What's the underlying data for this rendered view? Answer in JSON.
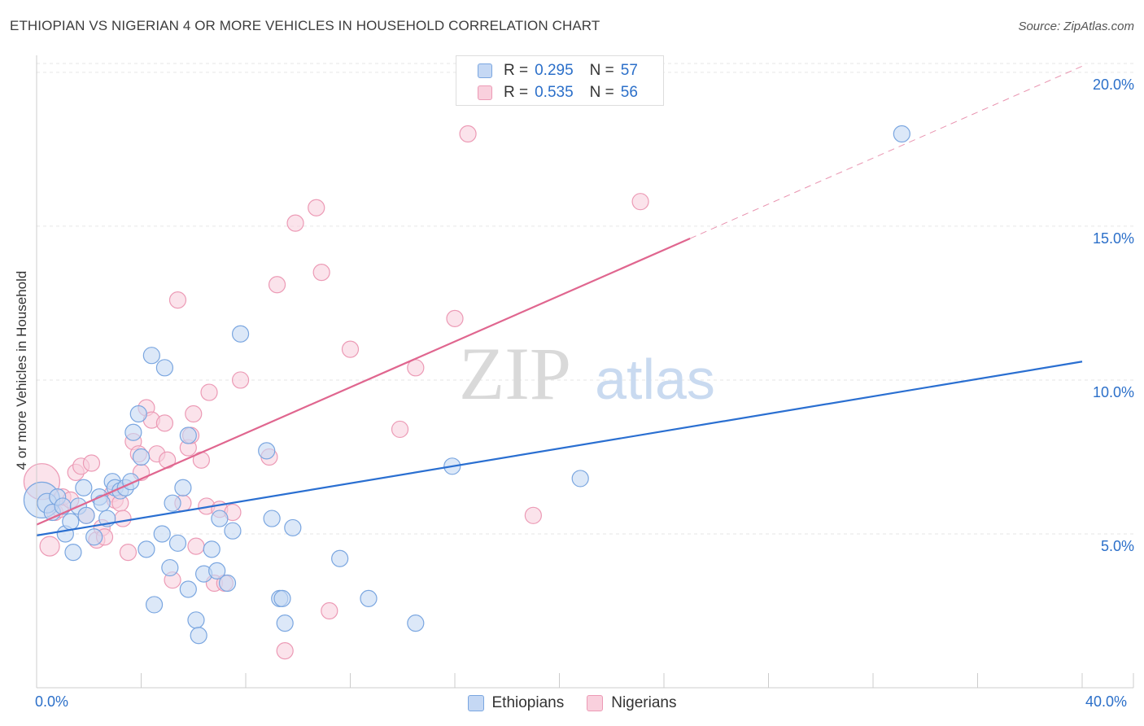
{
  "title": "ETHIOPIAN VS NIGERIAN 4 OR MORE VEHICLES IN HOUSEHOLD CORRELATION CHART",
  "source": "Source: ZipAtlas.com",
  "watermark": {
    "zip": "ZIP",
    "atlas": "atlas"
  },
  "legend_top": [
    {
      "r_label": "R =",
      "r_value": "0.295",
      "n_label": "N =",
      "n_value": "57"
    },
    {
      "r_label": "R =",
      "r_value": "0.535",
      "n_label": "N =",
      "n_value": "56"
    }
  ],
  "legend_bottom": [
    "Ethiopians",
    "Nigerians"
  ],
  "colors": {
    "ethiopian_fill": "#c5d8f4",
    "ethiopian_stroke": "#7aa6e0",
    "ethiopian_line": "#2a6fd1",
    "nigerian_fill": "#f9d0dd",
    "nigerian_stroke": "#ec9ab5",
    "nigerian_line": "#e0668f",
    "axis_text": "#2b6fc9",
    "grid": "#e6e6e6"
  },
  "chart_data": {
    "type": "scatter",
    "title": "ETHIOPIAN VS NIGERIAN 4 OR MORE VEHICLES IN HOUSEHOLD CORRELATION CHART",
    "xlabel": "",
    "ylabel": "4 or more Vehicles in Household",
    "xlim": [
      0,
      40
    ],
    "ylim": [
      0,
      20.5
    ],
    "x_tick_labels": [
      "0.0%",
      "40.0%"
    ],
    "y_ticks": [
      5,
      10,
      15,
      20
    ],
    "y_tick_labels": [
      "5.0%",
      "10.0%",
      "15.0%",
      "20.0%"
    ],
    "grid": true,
    "series": [
      {
        "name": "Ethiopians",
        "R": 0.295,
        "N": 57,
        "trend": {
          "x": [
            0,
            40
          ],
          "y": [
            4.95,
            10.6
          ]
        },
        "points": [
          [
            0.2,
            6.1,
            22
          ],
          [
            0.4,
            6.0,
            12
          ],
          [
            0.6,
            5.7,
            10
          ],
          [
            0.8,
            6.2,
            10
          ],
          [
            1.0,
            5.9,
            10
          ],
          [
            1.1,
            5.0,
            10
          ],
          [
            1.3,
            5.4,
            10
          ],
          [
            1.4,
            4.4,
            10
          ],
          [
            1.6,
            5.9,
            10
          ],
          [
            1.8,
            6.5,
            10
          ],
          [
            1.9,
            5.6,
            10
          ],
          [
            2.2,
            4.9,
            10
          ],
          [
            2.4,
            6.2,
            10
          ],
          [
            2.5,
            6.0,
            10
          ],
          [
            2.7,
            5.5,
            10
          ],
          [
            2.9,
            6.7,
            10
          ],
          [
            3.0,
            6.5,
            10
          ],
          [
            3.2,
            6.4,
            10
          ],
          [
            3.4,
            6.5,
            10
          ],
          [
            3.6,
            6.7,
            10
          ],
          [
            3.7,
            8.3,
            10
          ],
          [
            3.9,
            8.9,
            10
          ],
          [
            4.0,
            7.5,
            10
          ],
          [
            4.2,
            4.5,
            10
          ],
          [
            4.4,
            10.8,
            10
          ],
          [
            4.5,
            2.7,
            10
          ],
          [
            4.8,
            5.0,
            10
          ],
          [
            4.9,
            10.4,
            10
          ],
          [
            5.1,
            3.9,
            10
          ],
          [
            5.2,
            6.0,
            10
          ],
          [
            5.4,
            4.7,
            10
          ],
          [
            5.6,
            6.5,
            10
          ],
          [
            5.8,
            8.2,
            10
          ],
          [
            5.8,
            3.2,
            10
          ],
          [
            6.1,
            2.2,
            10
          ],
          [
            6.2,
            1.7,
            10
          ],
          [
            6.4,
            3.7,
            10
          ],
          [
            6.7,
            4.5,
            10
          ],
          [
            6.9,
            3.8,
            10
          ],
          [
            7.0,
            5.5,
            10
          ],
          [
            7.3,
            3.4,
            10
          ],
          [
            7.5,
            5.1,
            10
          ],
          [
            7.8,
            11.5,
            10
          ],
          [
            8.8,
            7.7,
            10
          ],
          [
            9.0,
            5.5,
            10
          ],
          [
            9.3,
            2.9,
            10
          ],
          [
            9.4,
            2.9,
            10
          ],
          [
            9.5,
            2.1,
            10
          ],
          [
            9.8,
            5.2,
            10
          ],
          [
            11.6,
            4.2,
            10
          ],
          [
            12.7,
            2.9,
            10
          ],
          [
            14.5,
            2.1,
            10
          ],
          [
            15.9,
            7.2,
            10
          ],
          [
            20.8,
            6.8,
            10
          ],
          [
            33.1,
            18.0,
            10
          ]
        ]
      },
      {
        "name": "Nigerians",
        "R": 0.535,
        "N": 56,
        "trend": {
          "x": [
            0,
            25
          ],
          "y": [
            5.3,
            14.6
          ]
        },
        "trend_ext": {
          "x": [
            25,
            40
          ],
          "y": [
            14.6,
            20.2
          ]
        },
        "points": [
          [
            0.2,
            6.7,
            22
          ],
          [
            0.5,
            4.6,
            12
          ],
          [
            0.7,
            5.7,
            10
          ],
          [
            0.9,
            5.8,
            10
          ],
          [
            1.0,
            6.2,
            10
          ],
          [
            1.3,
            6.1,
            10
          ],
          [
            1.5,
            7.0,
            10
          ],
          [
            1.7,
            7.2,
            10
          ],
          [
            1.9,
            5.6,
            10
          ],
          [
            2.1,
            7.3,
            10
          ],
          [
            2.3,
            4.8,
            10
          ],
          [
            2.5,
            5.2,
            10
          ],
          [
            2.6,
            4.9,
            10
          ],
          [
            2.9,
            6.3,
            10
          ],
          [
            3.0,
            6.1,
            10
          ],
          [
            3.2,
            6.0,
            10
          ],
          [
            3.3,
            5.5,
            10
          ],
          [
            3.5,
            4.4,
            10
          ],
          [
            3.7,
            8.0,
            10
          ],
          [
            3.9,
            7.6,
            10
          ],
          [
            4.0,
            7.0,
            10
          ],
          [
            4.2,
            9.1,
            10
          ],
          [
            4.4,
            8.7,
            10
          ],
          [
            4.6,
            7.6,
            10
          ],
          [
            4.9,
            8.6,
            10
          ],
          [
            5.0,
            7.4,
            10
          ],
          [
            5.2,
            3.5,
            10
          ],
          [
            5.4,
            12.6,
            10
          ],
          [
            5.6,
            6.0,
            10
          ],
          [
            5.8,
            7.8,
            10
          ],
          [
            5.9,
            8.2,
            10
          ],
          [
            6.0,
            8.9,
            10
          ],
          [
            6.1,
            4.6,
            10
          ],
          [
            6.3,
            7.4,
            10
          ],
          [
            6.5,
            5.9,
            10
          ],
          [
            6.6,
            9.6,
            10
          ],
          [
            6.8,
            3.4,
            10
          ],
          [
            7.0,
            5.8,
            10
          ],
          [
            7.2,
            3.4,
            10
          ],
          [
            7.5,
            5.7,
            10
          ],
          [
            7.8,
            10.0,
            10
          ],
          [
            8.9,
            7.5,
            10
          ],
          [
            9.2,
            13.1,
            10
          ],
          [
            9.5,
            1.2,
            10
          ],
          [
            9.9,
            15.1,
            10
          ],
          [
            10.7,
            15.6,
            10
          ],
          [
            10.9,
            13.5,
            10
          ],
          [
            11.2,
            2.5,
            10
          ],
          [
            12.0,
            11.0,
            10
          ],
          [
            13.9,
            8.4,
            10
          ],
          [
            14.5,
            10.4,
            10
          ],
          [
            16.0,
            12.0,
            10
          ],
          [
            16.5,
            18.0,
            10
          ],
          [
            19.0,
            5.6,
            10
          ],
          [
            23.1,
            15.8,
            10
          ]
        ]
      }
    ]
  }
}
